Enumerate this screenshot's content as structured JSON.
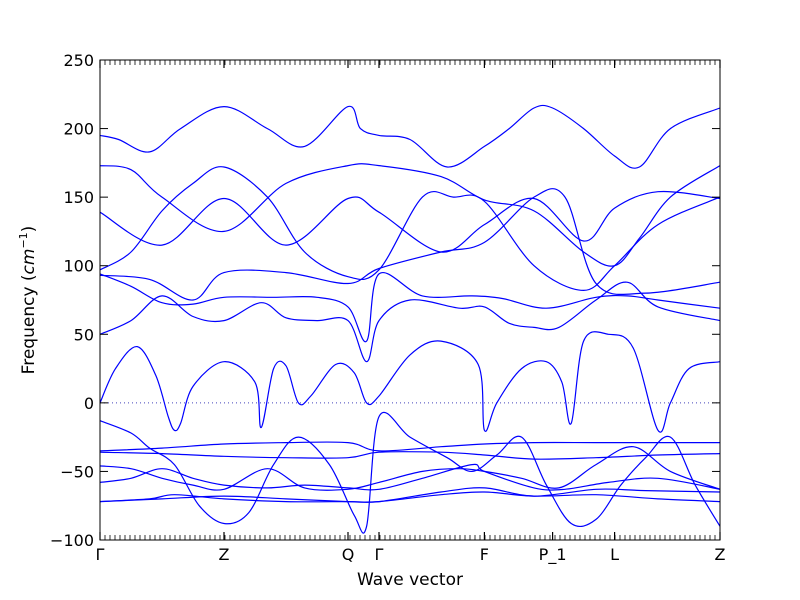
{
  "chart_data": {
    "type": "line",
    "title": "",
    "xlabel": "Wave vector",
    "ylabel": "Frequency (cm⁻¹)",
    "ylabel_parts": {
      "text": "Frequency (",
      "unit": "cm",
      "power": "−1",
      "close": ")"
    },
    "ylim": [
      -100,
      250
    ],
    "yticks": [
      -100,
      -50,
      0,
      50,
      100,
      150,
      200,
      250
    ],
    "grid": false,
    "zero_line": {
      "y": 0,
      "style": "dotted"
    },
    "line_color": "#0000ff",
    "xlim": [
      0,
      1
    ],
    "high_symmetry_points": [
      {
        "label": "Γ",
        "x": 0.0
      },
      {
        "label": "Z",
        "x": 0.2
      },
      {
        "label": "Q",
        "x": 0.4
      },
      {
        "label": "Γ",
        "x": 0.45
      },
      {
        "label": "F",
        "x": 0.62
      },
      {
        "label": "P_1",
        "x": 0.73
      },
      {
        "label": "L",
        "x": 0.83
      },
      {
        "label": "Z",
        "x": 1.0
      }
    ],
    "series": [
      {
        "x": [
          0,
          0.03,
          0.08,
          0.13,
          0.2,
          0.27,
          0.33,
          0.4,
          0.42,
          0.45,
          0.5,
          0.56,
          0.62,
          0.66,
          0.7,
          0.73,
          0.78,
          0.83,
          0.87,
          0.92,
          1.0
        ],
        "values": [
          195,
          192,
          183,
          200,
          216,
          200,
          187,
          216,
          200,
          195,
          192,
          172,
          187,
          200,
          215,
          215,
          200,
          180,
          172,
          200,
          215
        ]
      },
      {
        "x": [
          0,
          0.05,
          0.1,
          0.2,
          0.3,
          0.4,
          0.45,
          0.55,
          0.62,
          0.7,
          0.78,
          0.83,
          0.87,
          0.92,
          1.0
        ],
        "values": [
          173,
          170,
          150,
          125,
          160,
          173,
          173,
          165,
          148,
          140,
          110,
          100,
          120,
          150,
          173
        ]
      },
      {
        "x": [
          0,
          0.1,
          0.2,
          0.3,
          0.4,
          0.45,
          0.55,
          0.62,
          0.7,
          0.78,
          0.83,
          0.9,
          1.0
        ],
        "values": [
          139,
          115,
          149,
          115,
          149,
          139,
          110,
          130,
          149,
          118,
          142,
          154,
          149
        ]
      },
      {
        "x": [
          0,
          0.05,
          0.1,
          0.15,
          0.2,
          0.27,
          0.33,
          0.4,
          0.45,
          0.52,
          0.57,
          0.62,
          0.7,
          0.78,
          0.83,
          0.9,
          1.0
        ],
        "values": [
          97,
          110,
          140,
          160,
          172,
          150,
          110,
          92,
          97,
          150,
          150,
          147,
          100,
          82,
          100,
          130,
          150
        ]
      },
      {
        "x": [
          0,
          0.08,
          0.15,
          0.2,
          0.3,
          0.4,
          0.45,
          0.55,
          0.62,
          0.7,
          0.75,
          0.8,
          0.88,
          1.0
        ],
        "values": [
          93,
          90,
          75,
          95,
          95,
          87,
          98,
          110,
          117,
          150,
          150,
          87,
          80,
          88
        ]
      },
      {
        "x": [
          0,
          0.05,
          0.1,
          0.15,
          0.2,
          0.28,
          0.35,
          0.4,
          0.43,
          0.45,
          0.52,
          0.6,
          0.65,
          0.72,
          0.8,
          0.85,
          0.9,
          1.0
        ],
        "values": [
          94,
          85,
          73,
          72,
          77,
          77,
          77,
          70,
          45,
          94,
          78,
          78,
          76,
          69,
          77,
          78,
          75,
          69
        ]
      },
      {
        "x": [
          0,
          0.05,
          0.1,
          0.15,
          0.2,
          0.26,
          0.3,
          0.35,
          0.4,
          0.43,
          0.45,
          0.5,
          0.58,
          0.62,
          0.66,
          0.7,
          0.74,
          0.8,
          0.85,
          0.9,
          1.0
        ],
        "values": [
          50,
          60,
          78,
          63,
          60,
          73,
          62,
          60,
          60,
          30,
          60,
          75,
          69,
          70,
          58,
          55,
          55,
          75,
          88,
          70,
          60
        ]
      },
      {
        "x": [
          0,
          0.025,
          0.06,
          0.09,
          0.11,
          0.12,
          0.13,
          0.15,
          0.2,
          0.25,
          0.26,
          0.28,
          0.3,
          0.32,
          0.34,
          0.38,
          0.41,
          0.43,
          0.45,
          0.5,
          0.55,
          0.61,
          0.62,
          0.64,
          0.68,
          0.72,
          0.745,
          0.76,
          0.78,
          0.82,
          0.86,
          0.9,
          0.92,
          0.95,
          1.0
        ],
        "values": [
          0,
          25,
          41,
          20,
          -10,
          -20,
          -15,
          12,
          30,
          15,
          -18,
          25,
          27,
          0,
          5,
          28,
          22,
          0,
          5,
          35,
          45,
          28,
          -20,
          0,
          25,
          30,
          15,
          -15,
          45,
          50,
          40,
          -20,
          0,
          25,
          30
        ]
      },
      {
        "x": [
          0,
          0.05,
          0.08,
          0.12,
          0.16,
          0.2,
          0.24,
          0.28,
          0.32,
          0.37,
          0.41,
          0.43,
          0.45,
          0.5,
          0.56,
          0.6,
          0.64,
          0.68,
          0.72,
          0.76,
          0.8,
          0.84,
          0.88,
          0.92,
          0.96,
          1.0
        ],
        "values": [
          -13,
          -22,
          -33,
          -45,
          -75,
          -88,
          -80,
          -45,
          -25,
          -45,
          -82,
          -90,
          -10,
          -25,
          -40,
          -50,
          -38,
          -25,
          -60,
          -88,
          -85,
          -60,
          -40,
          -25,
          -60,
          -90
        ]
      },
      {
        "x": [
          0,
          0.1,
          0.2,
          0.3,
          0.4,
          0.45,
          0.55,
          0.62,
          0.7,
          0.8,
          0.9,
          1.0
        ],
        "values": [
          -35,
          -33,
          -30,
          -29,
          -29,
          -35,
          -32,
          -30,
          -29,
          -29,
          -29,
          -29
        ]
      },
      {
        "x": [
          0,
          0.1,
          0.2,
          0.3,
          0.4,
          0.45,
          0.55,
          0.62,
          0.7,
          0.8,
          0.9,
          1.0
        ],
        "values": [
          -36,
          -37,
          -39,
          -40,
          -40,
          -36,
          -36,
          -38,
          -41,
          -40,
          -38,
          -37
        ]
      },
      {
        "x": [
          0,
          0.05,
          0.1,
          0.15,
          0.2,
          0.27,
          0.33,
          0.4,
          0.45,
          0.52,
          0.58,
          0.62,
          0.68,
          0.74,
          0.8,
          0.86,
          0.92,
          1.0
        ],
        "values": [
          -46,
          -48,
          -55,
          -60,
          -63,
          -48,
          -62,
          -63,
          -58,
          -50,
          -48,
          -50,
          -55,
          -62,
          -45,
          -32,
          -50,
          -63
        ]
      },
      {
        "x": [
          0,
          0.05,
          0.1,
          0.15,
          0.2,
          0.27,
          0.33,
          0.4,
          0.45,
          0.52,
          0.6,
          0.62,
          0.7,
          0.75,
          0.82,
          0.9,
          1.0
        ],
        "values": [
          -58,
          -55,
          -48,
          -55,
          -60,
          -62,
          -60,
          -62,
          -63,
          -55,
          -45,
          -50,
          -62,
          -63,
          -58,
          -55,
          -63
        ]
      },
      {
        "x": [
          0,
          0.08,
          0.12,
          0.2,
          0.3,
          0.4,
          0.45,
          0.55,
          0.62,
          0.7,
          0.8,
          0.88,
          1.0
        ],
        "values": [
          -72,
          -70,
          -67,
          -70,
          -72,
          -72,
          -72,
          -65,
          -62,
          -68,
          -63,
          -64,
          -65
        ]
      },
      {
        "x": [
          0,
          0.1,
          0.2,
          0.3,
          0.4,
          0.45,
          0.55,
          0.62,
          0.7,
          0.8,
          0.9,
          1.0
        ],
        "values": [
          -72,
          -70,
          -68,
          -70,
          -72,
          -72,
          -67,
          -65,
          -68,
          -67,
          -70,
          -72
        ]
      }
    ]
  }
}
